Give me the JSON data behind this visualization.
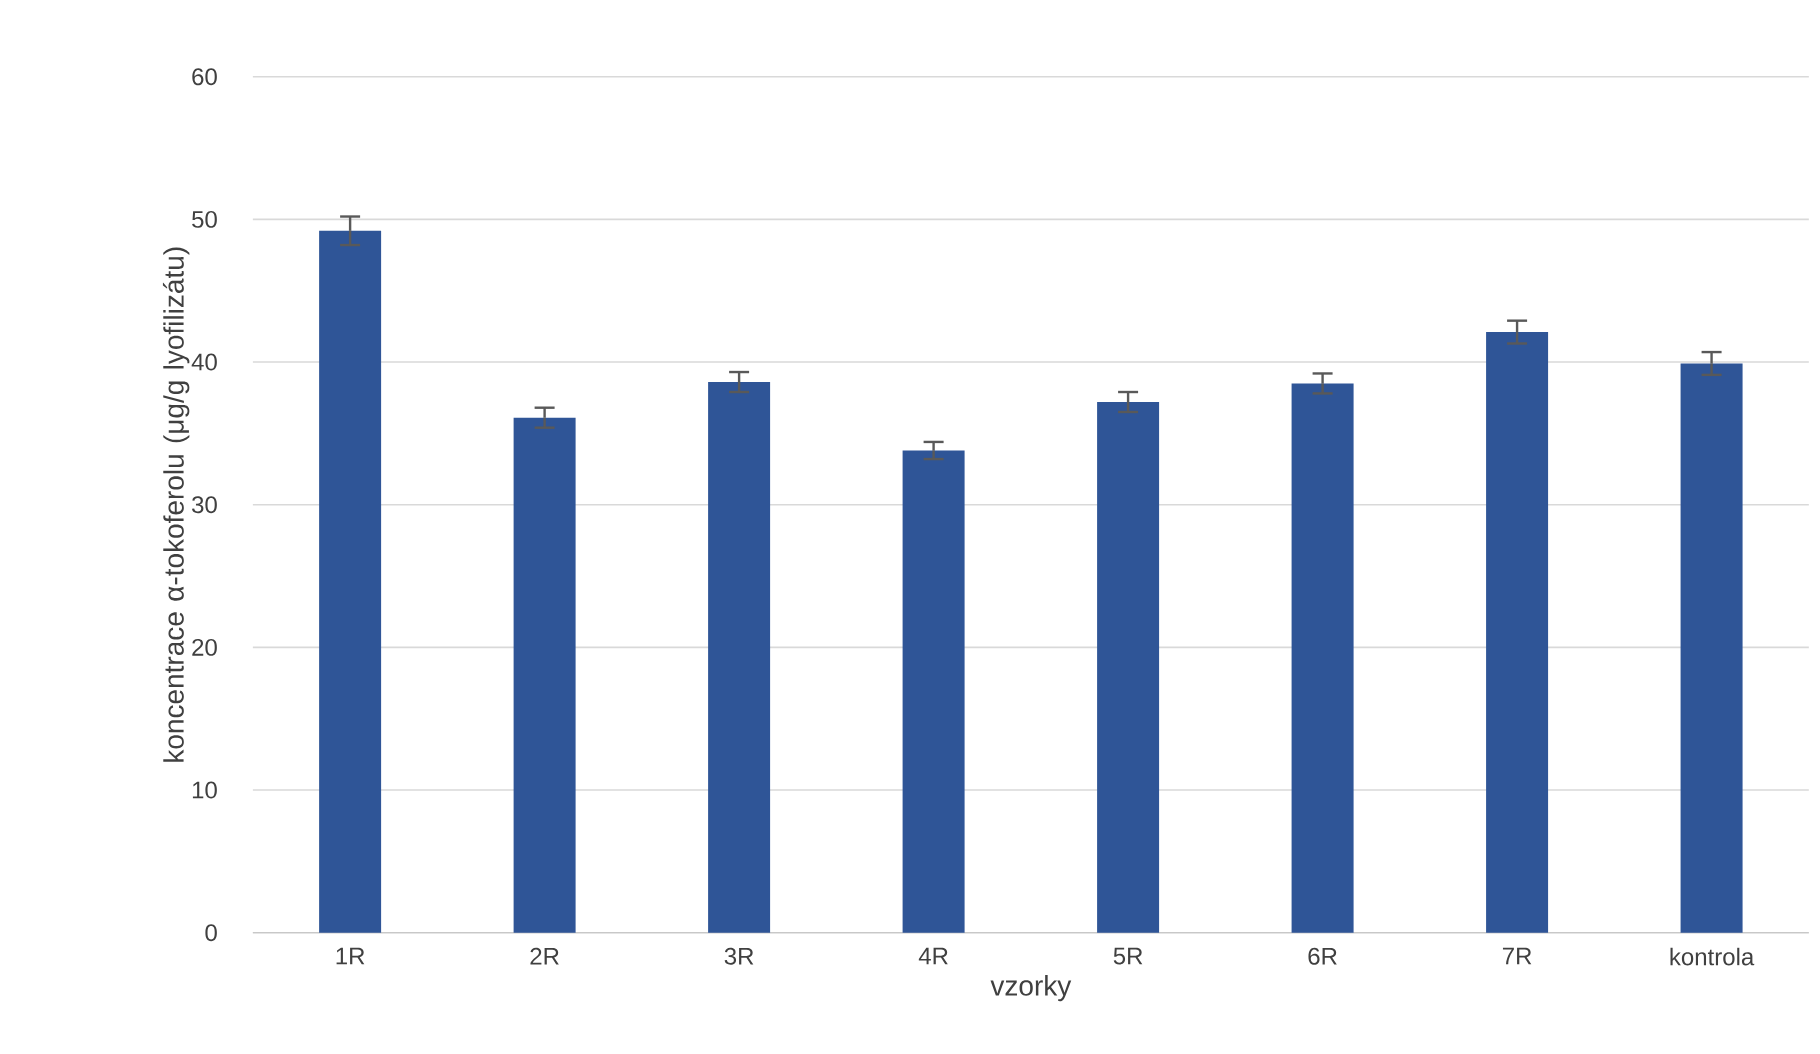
{
  "chart_data": {
    "type": "bar",
    "xlabel": "vzorky",
    "ylabel": "koncentrace α-tokoferolu (μg/g lyofilizátu)",
    "categories": [
      "1R",
      "2R",
      "3R",
      "4R",
      "5R",
      "6R",
      "7R",
      "kontrola"
    ],
    "values": [
      49.2,
      36.1,
      38.6,
      33.8,
      37.2,
      38.5,
      42.1,
      39.9
    ],
    "errors": [
      1.0,
      0.7,
      0.7,
      0.6,
      0.7,
      0.7,
      0.8,
      0.8
    ],
    "color": "#2f5597",
    "ylim": [
      0,
      60
    ],
    "yticks": [
      0,
      10,
      20,
      30,
      40,
      50,
      60
    ],
    "grid": "y"
  }
}
